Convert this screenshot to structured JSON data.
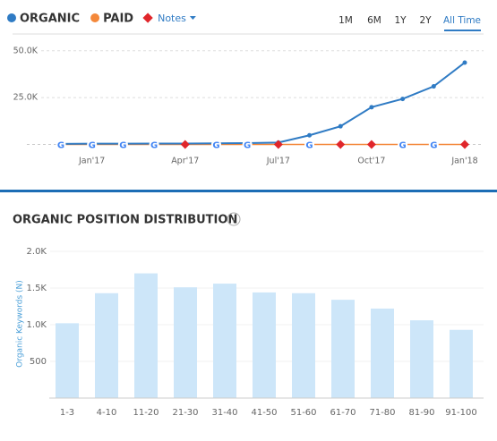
{
  "chart_data": [
    {
      "type": "line",
      "series": [
        {
          "name": "ORGANIC",
          "color": "#2f7bc4",
          "values": [
            300,
            400,
            400,
            500,
            500,
            600,
            700,
            1000,
            4900,
            9700,
            19900,
            24300,
            31000,
            43700
          ]
        },
        {
          "name": "PAID",
          "color": "#f4883a",
          "values": [
            0,
            0,
            0,
            0,
            0,
            0,
            0,
            0,
            0,
            0,
            0,
            0,
            0,
            0
          ]
        }
      ],
      "notes": "Notes",
      "categories": [
        null,
        "Jan'17",
        null,
        null,
        "Apr'17",
        null,
        null,
        "Jul'17",
        null,
        null,
        "Oct'17",
        null,
        null,
        "Jan'18"
      ],
      "ylim": [
        0,
        58000
      ],
      "yticks": [
        {
          "value": 25000,
          "label": "25.0K"
        },
        {
          "value": 50000,
          "label": "50.0K"
        }
      ],
      "ranges": [
        "1M",
        "6M",
        "1Y",
        "2Y",
        "All Time"
      ],
      "active_range": "All Time"
    },
    {
      "type": "bar",
      "title": "ORGANIC POSITION DISTRIBUTION",
      "y_label": "Organic Keywords (N)",
      "color": "#cde6f9",
      "categories": [
        "1-3",
        "4-10",
        "11-20",
        "21-30",
        "31-40",
        "41-50",
        "51-60",
        "61-70",
        "71-80",
        "81-90",
        "91-100"
      ],
      "values": [
        1020,
        1430,
        1700,
        1510,
        1560,
        1440,
        1430,
        1340,
        1220,
        1060,
        930
      ],
      "ylim": [
        0,
        2000
      ],
      "yticks": [
        500,
        {
          "value": 1000,
          "label": "1.0K"
        },
        {
          "value": 1500,
          "label": "1.5K"
        },
        {
          "value": 2000,
          "label": "2.0K"
        }
      ],
      "grid": true
    }
  ]
}
